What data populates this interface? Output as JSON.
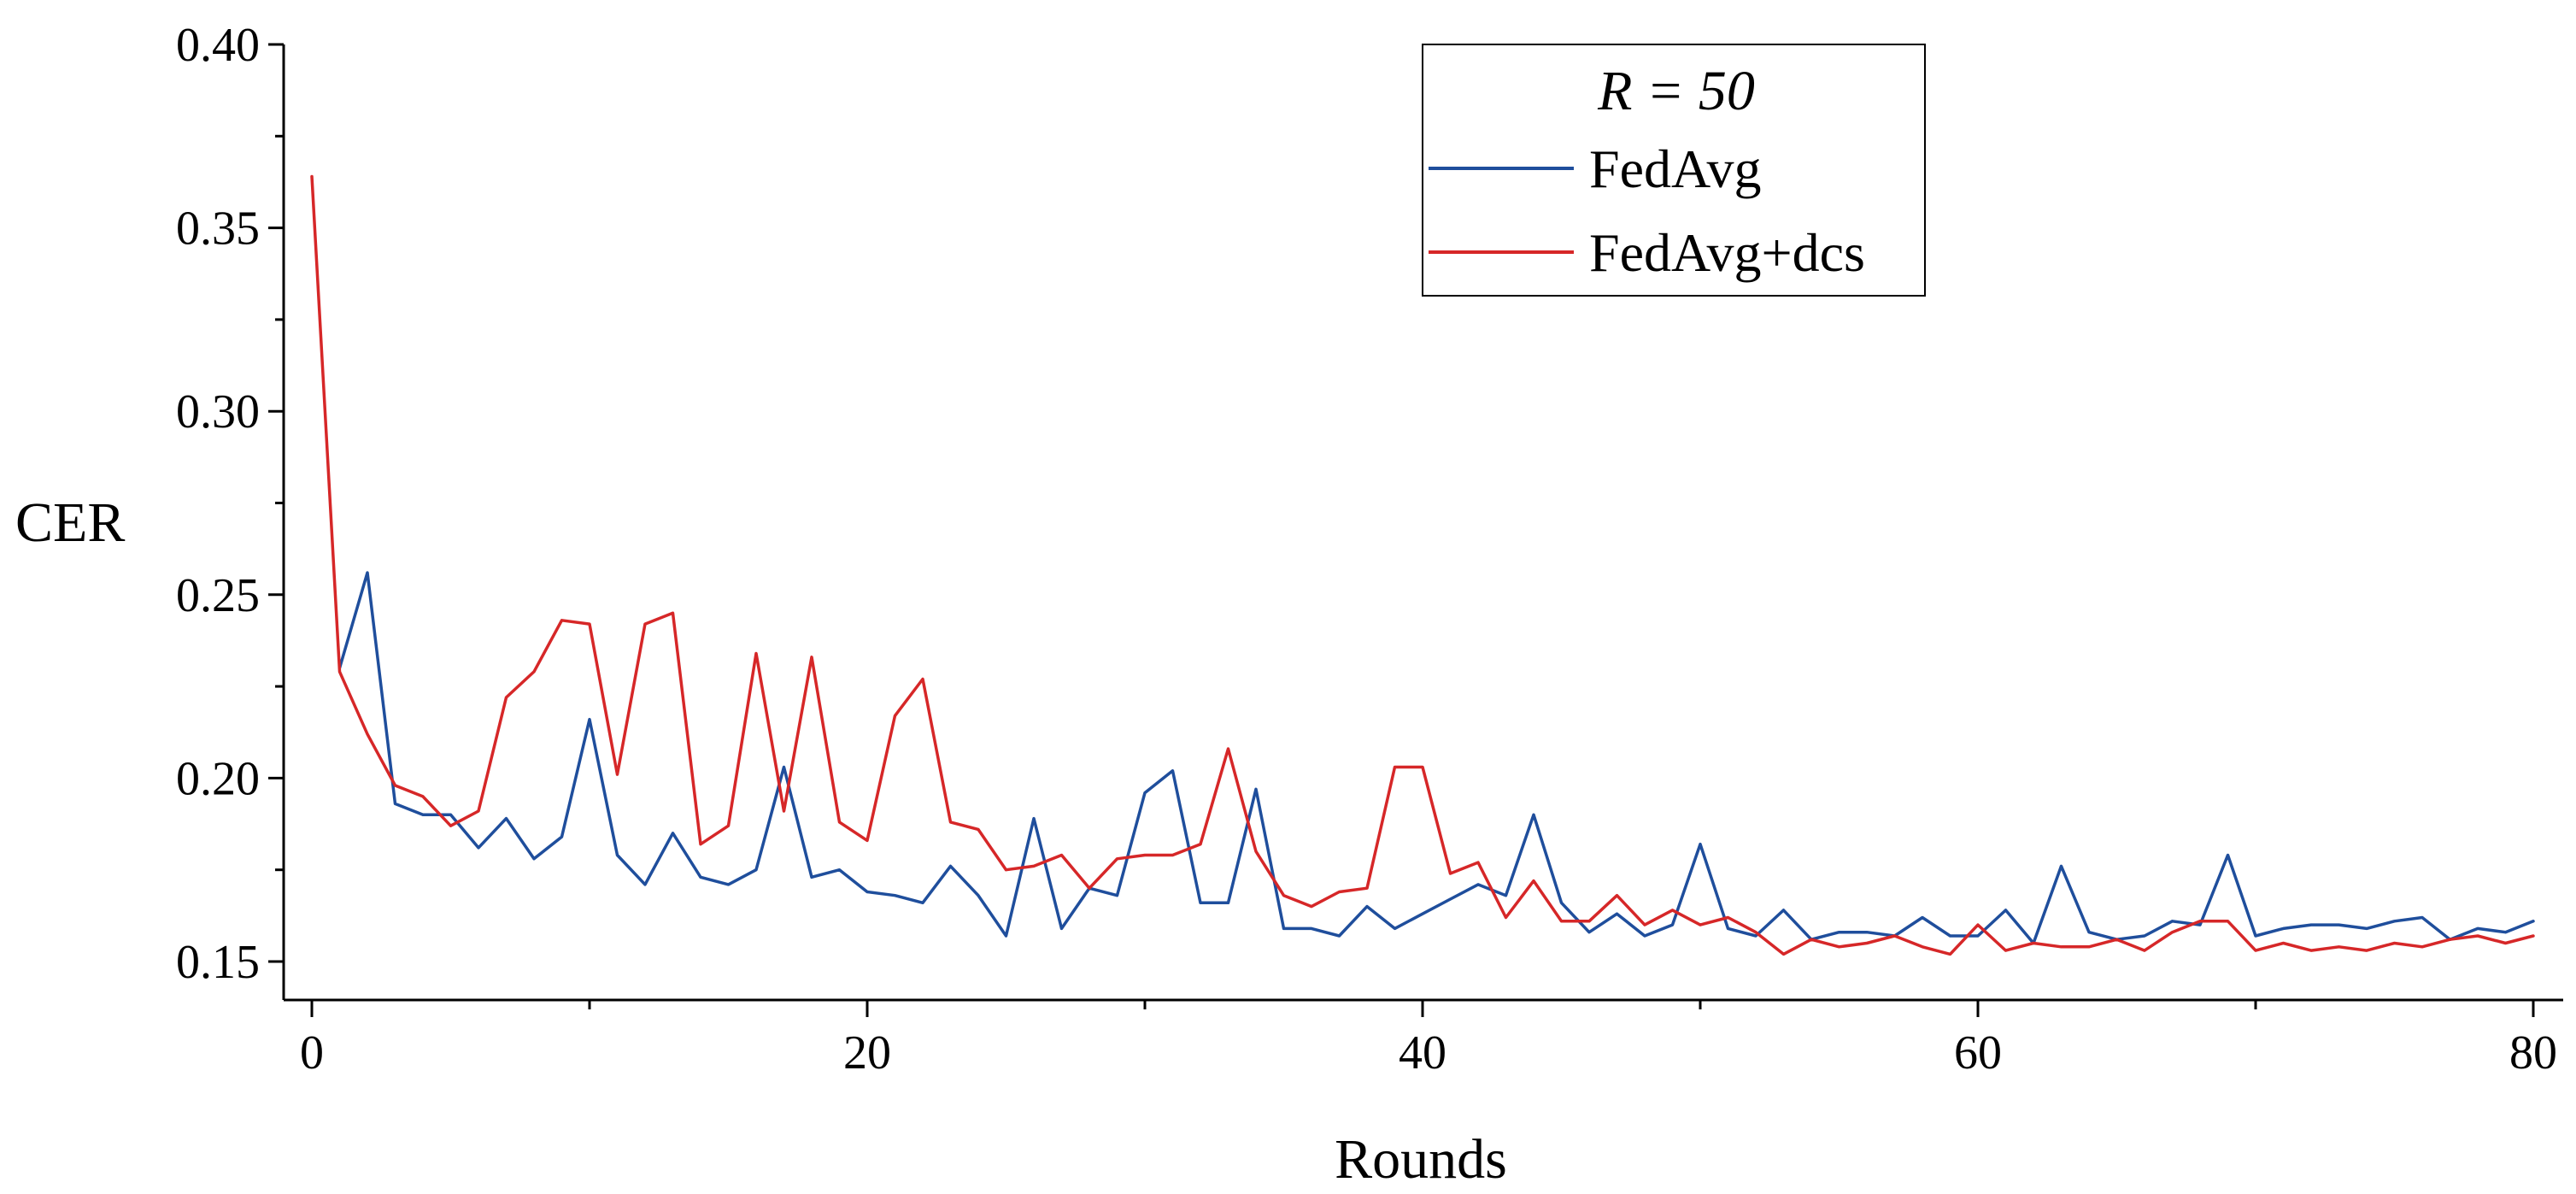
{
  "chart_data": {
    "type": "line",
    "title": "",
    "xlabel": "Rounds",
    "ylabel": "CER",
    "xlim": [
      0,
      80
    ],
    "ylim": [
      0.15,
      0.4
    ],
    "xticks": [
      0,
      20,
      40,
      60,
      80
    ],
    "xtick_labels": [
      "0",
      "20",
      "40",
      "60",
      "80"
    ],
    "yticks": [
      0.15,
      0.2,
      0.25,
      0.3,
      0.35,
      0.4
    ],
    "ytick_labels": [
      "0.15",
      "0.20",
      "0.25",
      "0.30",
      "0.35",
      "0.40"
    ],
    "legend": {
      "title": "R = 50",
      "placement": "top-center"
    },
    "series": [
      {
        "name": "FedAvg",
        "color": "#1f4e9c",
        "x": [
          1,
          2,
          3,
          4,
          5,
          6,
          7,
          8,
          9,
          10,
          11,
          12,
          13,
          14,
          15,
          16,
          17,
          18,
          19,
          20,
          21,
          22,
          23,
          24,
          25,
          26,
          27,
          28,
          29,
          30,
          31,
          32,
          33,
          34,
          35,
          36,
          37,
          38,
          39,
          40,
          41,
          42,
          43,
          44,
          45,
          46,
          47,
          48,
          49,
          50,
          51,
          52,
          53,
          54,
          55,
          56,
          57,
          58,
          59,
          60,
          61,
          62,
          63,
          64,
          65,
          66,
          67,
          68,
          69,
          70,
          71,
          72,
          73,
          74,
          75,
          76,
          77,
          78,
          79,
          80
        ],
        "values": [
          0.23,
          0.256,
          0.193,
          0.19,
          0.19,
          0.181,
          0.189,
          0.178,
          0.184,
          0.216,
          0.179,
          0.171,
          0.185,
          0.173,
          0.171,
          0.175,
          0.203,
          0.173,
          0.175,
          0.169,
          0.168,
          0.166,
          0.176,
          0.168,
          0.157,
          0.189,
          0.159,
          0.17,
          0.168,
          0.196,
          0.202,
          0.166,
          0.166,
          0.197,
          0.159,
          0.159,
          0.157,
          0.165,
          0.159,
          0.163,
          0.167,
          0.171,
          0.168,
          0.19,
          0.166,
          0.158,
          0.163,
          0.157,
          0.16,
          0.182,
          0.159,
          0.157,
          0.164,
          0.156,
          0.158,
          0.158,
          0.157,
          0.162,
          0.157,
          0.157,
          0.164,
          0.155,
          0.176,
          0.158,
          0.156,
          0.157,
          0.161,
          0.16,
          0.179,
          0.157,
          0.159,
          0.16,
          0.16,
          0.159,
          0.161,
          0.162,
          0.156,
          0.159,
          0.158,
          0.161
        ]
      },
      {
        "name": "FedAvg+dcs",
        "color": "#d62728",
        "x": [
          0,
          1,
          2,
          3,
          4,
          5,
          6,
          7,
          8,
          9,
          10,
          11,
          12,
          13,
          14,
          15,
          16,
          17,
          18,
          19,
          20,
          21,
          22,
          23,
          24,
          25,
          26,
          27,
          28,
          29,
          30,
          31,
          32,
          33,
          34,
          35,
          36,
          37,
          38,
          39,
          40,
          41,
          42,
          43,
          44,
          45,
          46,
          47,
          48,
          49,
          50,
          51,
          52,
          53,
          54,
          55,
          56,
          57,
          58,
          59,
          60,
          61,
          62,
          63,
          64,
          65,
          66,
          67,
          68,
          69,
          70,
          71,
          72,
          73,
          74,
          75,
          76,
          77,
          78,
          79,
          80
        ],
        "values": [
          0.364,
          0.229,
          0.212,
          0.198,
          0.195,
          0.187,
          0.191,
          0.222,
          0.229,
          0.243,
          0.242,
          0.201,
          0.242,
          0.245,
          0.182,
          0.187,
          0.234,
          0.191,
          0.233,
          0.188,
          0.183,
          0.217,
          0.227,
          0.188,
          0.186,
          0.175,
          0.176,
          0.179,
          0.17,
          0.178,
          0.179,
          0.179,
          0.182,
          0.208,
          0.18,
          0.168,
          0.165,
          0.169,
          0.17,
          0.203,
          0.203,
          0.174,
          0.177,
          0.162,
          0.172,
          0.161,
          0.161,
          0.168,
          0.16,
          0.164,
          0.16,
          0.162,
          0.158,
          0.152,
          0.156,
          0.154,
          0.155,
          0.157,
          0.154,
          0.152,
          0.16,
          0.153,
          0.155,
          0.154,
          0.154,
          0.156,
          0.153,
          0.158,
          0.161,
          0.161,
          0.153,
          0.155,
          0.153,
          0.154,
          0.153,
          0.155,
          0.154,
          0.156,
          0.157,
          0.155,
          0.157
        ]
      }
    ]
  }
}
